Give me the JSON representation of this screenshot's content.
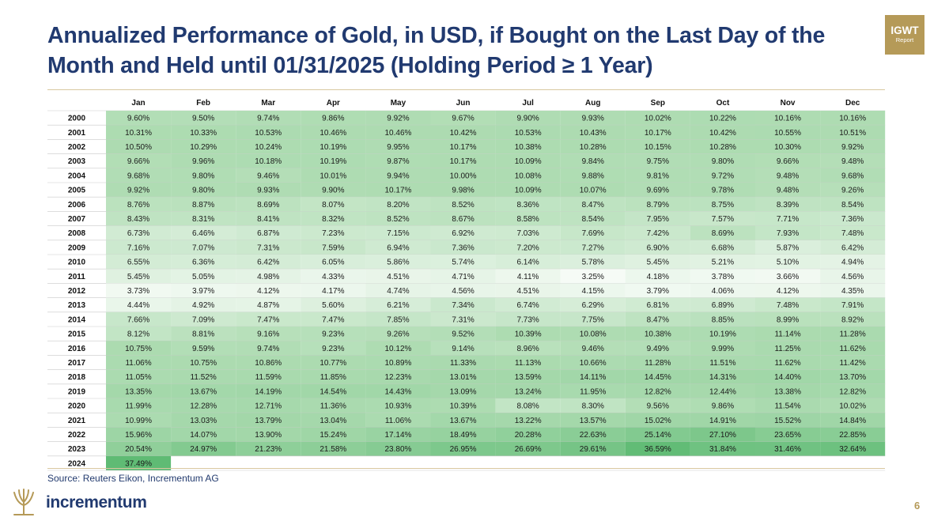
{
  "header": {
    "title": "Annualized Performance of Gold, in USD, if Bought on the Last Day of the Month and Held until 01/31/2025 (Holding Period ≥ 1 Year)",
    "badge_main": "IGWT",
    "badge_sub": "Report"
  },
  "footer": {
    "source": "Source: Reuters Eikon, Incrementum AG",
    "brand": "incrementum",
    "page_number": "6"
  },
  "colors": {
    "title": "#213a70",
    "gold": "#b59a58",
    "cell_low": "#f6fbf6",
    "cell_mid": "#aedcb2",
    "cell_high": "#5fbb74"
  },
  "chart_data": {
    "type": "heatmap",
    "title": "Annualized Performance of Gold, in USD, if Bought on the Last Day of the Month and Held until 01/31/2025 (Holding Period ≥ 1 Year)",
    "columns": [
      "Jan",
      "Feb",
      "Mar",
      "Apr",
      "May",
      "Jun",
      "Jul",
      "Aug",
      "Sep",
      "Oct",
      "Nov",
      "Dec"
    ],
    "rows": [
      {
        "year": "2000",
        "values": [
          "9.60%",
          "9.50%",
          "9.74%",
          "9.86%",
          "9.92%",
          "9.67%",
          "9.90%",
          "9.93%",
          "10.02%",
          "10.22%",
          "10.16%",
          "10.16%"
        ]
      },
      {
        "year": "2001",
        "values": [
          "10.31%",
          "10.33%",
          "10.53%",
          "10.46%",
          "10.46%",
          "10.42%",
          "10.53%",
          "10.43%",
          "10.17%",
          "10.42%",
          "10.55%",
          "10.51%"
        ]
      },
      {
        "year": "2002",
        "values": [
          "10.50%",
          "10.29%",
          "10.24%",
          "10.19%",
          "9.95%",
          "10.17%",
          "10.38%",
          "10.28%",
          "10.15%",
          "10.28%",
          "10.30%",
          "9.92%"
        ]
      },
      {
        "year": "2003",
        "values": [
          "9.66%",
          "9.96%",
          "10.18%",
          "10.19%",
          "9.87%",
          "10.17%",
          "10.09%",
          "9.84%",
          "9.75%",
          "9.80%",
          "9.66%",
          "9.48%"
        ]
      },
      {
        "year": "2004",
        "values": [
          "9.68%",
          "9.80%",
          "9.46%",
          "10.01%",
          "9.94%",
          "10.00%",
          "10.08%",
          "9.88%",
          "9.81%",
          "9.72%",
          "9.48%",
          "9.68%"
        ]
      },
      {
        "year": "2005",
        "values": [
          "9.92%",
          "9.80%",
          "9.93%",
          "9.90%",
          "10.17%",
          "9.98%",
          "10.09%",
          "10.07%",
          "9.69%",
          "9.78%",
          "9.48%",
          "9.26%"
        ]
      },
      {
        "year": "2006",
        "values": [
          "8.76%",
          "8.87%",
          "8.69%",
          "8.07%",
          "8.20%",
          "8.52%",
          "8.36%",
          "8.47%",
          "8.79%",
          "8.75%",
          "8.39%",
          "8.54%"
        ]
      },
      {
        "year": "2007",
        "values": [
          "8.43%",
          "8.31%",
          "8.41%",
          "8.32%",
          "8.52%",
          "8.67%",
          "8.58%",
          "8.54%",
          "7.95%",
          "7.57%",
          "7.71%",
          "7.36%"
        ]
      },
      {
        "year": "2008",
        "values": [
          "6.73%",
          "6.46%",
          "6.87%",
          "7.23%",
          "7.15%",
          "6.92%",
          "7.03%",
          "7.69%",
          "7.42%",
          "8.69%",
          "7.93%",
          "7.48%"
        ]
      },
      {
        "year": "2009",
        "values": [
          "7.16%",
          "7.07%",
          "7.31%",
          "7.59%",
          "6.94%",
          "7.36%",
          "7.20%",
          "7.27%",
          "6.90%",
          "6.68%",
          "5.87%",
          "6.42%"
        ]
      },
      {
        "year": "2010",
        "values": [
          "6.55%",
          "6.36%",
          "6.42%",
          "6.05%",
          "5.86%",
          "5.74%",
          "6.14%",
          "5.78%",
          "5.45%",
          "5.21%",
          "5.10%",
          "4.94%"
        ]
      },
      {
        "year": "2011",
        "values": [
          "5.45%",
          "5.05%",
          "4.98%",
          "4.33%",
          "4.51%",
          "4.71%",
          "4.11%",
          "3.25%",
          "4.18%",
          "3.78%",
          "3.66%",
          "4.56%"
        ]
      },
      {
        "year": "2012",
        "values": [
          "3.73%",
          "3.97%",
          "4.12%",
          "4.17%",
          "4.74%",
          "4.56%",
          "4.51%",
          "4.15%",
          "3.79%",
          "4.06%",
          "4.12%",
          "4.35%"
        ]
      },
      {
        "year": "2013",
        "values": [
          "4.44%",
          "4.92%",
          "4.87%",
          "5.60%",
          "6.21%",
          "7.34%",
          "6.74%",
          "6.29%",
          "6.81%",
          "6.89%",
          "7.48%",
          "7.91%"
        ]
      },
      {
        "year": "2014",
        "values": [
          "7.66%",
          "7.09%",
          "7.47%",
          "7.47%",
          "7.85%",
          "7.31%",
          "7.73%",
          "7.75%",
          "8.47%",
          "8.85%",
          "8.99%",
          "8.92%"
        ]
      },
      {
        "year": "2015",
        "values": [
          "8.12%",
          "8.81%",
          "9.16%",
          "9.23%",
          "9.26%",
          "9.52%",
          "10.39%",
          "10.08%",
          "10.38%",
          "10.19%",
          "11.14%",
          "11.28%"
        ]
      },
      {
        "year": "2016",
        "values": [
          "10.75%",
          "9.59%",
          "9.74%",
          "9.23%",
          "10.12%",
          "9.14%",
          "8.96%",
          "9.46%",
          "9.49%",
          "9.99%",
          "11.25%",
          "11.62%"
        ]
      },
      {
        "year": "2017",
        "values": [
          "11.06%",
          "10.75%",
          "10.86%",
          "10.77%",
          "10.89%",
          "11.33%",
          "11.13%",
          "10.66%",
          "11.28%",
          "11.51%",
          "11.62%",
          "11.42%"
        ]
      },
      {
        "year": "2018",
        "values": [
          "11.05%",
          "11.52%",
          "11.59%",
          "11.85%",
          "12.23%",
          "13.01%",
          "13.59%",
          "14.11%",
          "14.45%",
          "14.31%",
          "14.40%",
          "13.70%"
        ]
      },
      {
        "year": "2019",
        "values": [
          "13.35%",
          "13.67%",
          "14.19%",
          "14.54%",
          "14.43%",
          "13.09%",
          "13.24%",
          "11.95%",
          "12.82%",
          "12.44%",
          "13.38%",
          "12.82%"
        ]
      },
      {
        "year": "2020",
        "values": [
          "11.99%",
          "12.28%",
          "12.71%",
          "11.36%",
          "10.93%",
          "10.39%",
          "8.08%",
          "8.30%",
          "9.56%",
          "9.86%",
          "11.54%",
          "10.02%"
        ]
      },
      {
        "year": "2021",
        "values": [
          "10.99%",
          "13.03%",
          "13.79%",
          "13.04%",
          "11.06%",
          "13.67%",
          "13.22%",
          "13.57%",
          "15.02%",
          "14.91%",
          "15.52%",
          "14.84%"
        ]
      },
      {
        "year": "2022",
        "values": [
          "15.96%",
          "14.07%",
          "13.90%",
          "15.24%",
          "17.14%",
          "18.49%",
          "20.28%",
          "22.63%",
          "25.14%",
          "27.10%",
          "23.65%",
          "22.85%"
        ]
      },
      {
        "year": "2023",
        "values": [
          "20.54%",
          "24.97%",
          "21.23%",
          "21.58%",
          "23.80%",
          "26.95%",
          "26.69%",
          "29.61%",
          "36.59%",
          "31.84%",
          "31.46%",
          "32.64%"
        ]
      },
      {
        "year": "2024",
        "values": [
          "37.49%"
        ]
      }
    ]
  }
}
